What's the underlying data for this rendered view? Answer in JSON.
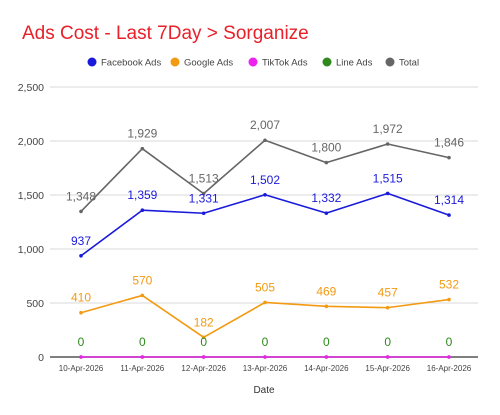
{
  "chart_data": {
    "type": "line",
    "title": "Ads Cost - Last 7Day > Sorganize",
    "xlabel": "Date",
    "ylabel": "",
    "ylim": [
      0,
      2500
    ],
    "yticks": [
      0,
      500,
      1000,
      1500,
      2000,
      2500
    ],
    "ytick_labels": [
      "0",
      "500",
      "1,000",
      "1,500",
      "2,000",
      "2,500"
    ],
    "grid": true,
    "legend_position": "top",
    "title_color": "#e8202a",
    "categories": [
      "10-Apr-2026",
      "11-Apr-2026",
      "12-Apr-2026",
      "13-Apr-2026",
      "14-Apr-2026",
      "15-Apr-2026",
      "16-Apr-2026"
    ],
    "series": [
      {
        "name": "Facebook Ads",
        "color": "#1a1adb",
        "values": [
          937,
          1359,
          1331,
          1502,
          1332,
          1515,
          1314
        ],
        "labels": [
          "937",
          "1,359",
          "1,331",
          "1,502",
          "1,332",
          "1,515",
          "1,314"
        ]
      },
      {
        "name": "Google Ads",
        "color": "#f29a12",
        "values": [
          410,
          570,
          182,
          505,
          469,
          457,
          532
        ],
        "labels": [
          "410",
          "570",
          "182",
          "505",
          "469",
          "457",
          "532"
        ]
      },
      {
        "name": "TikTok Ads",
        "color": "#ee22ee",
        "values": [
          0,
          0,
          0,
          0,
          0,
          0,
          0
        ],
        "labels": []
      },
      {
        "name": "Line Ads",
        "color": "#2e8a1c",
        "values": [
          0,
          0,
          0,
          0,
          0,
          0,
          0
        ],
        "labels": [
          "0",
          "0",
          "0",
          "0",
          "0",
          "0",
          "0"
        ]
      },
      {
        "name": "Total",
        "color": "#666666",
        "values": [
          1348,
          1929,
          1513,
          2007,
          1800,
          1972,
          1846
        ],
        "labels": [
          "1,348",
          "1,929",
          "1,513",
          "2,007",
          "1,800",
          "1,972",
          "1,846"
        ]
      }
    ]
  }
}
